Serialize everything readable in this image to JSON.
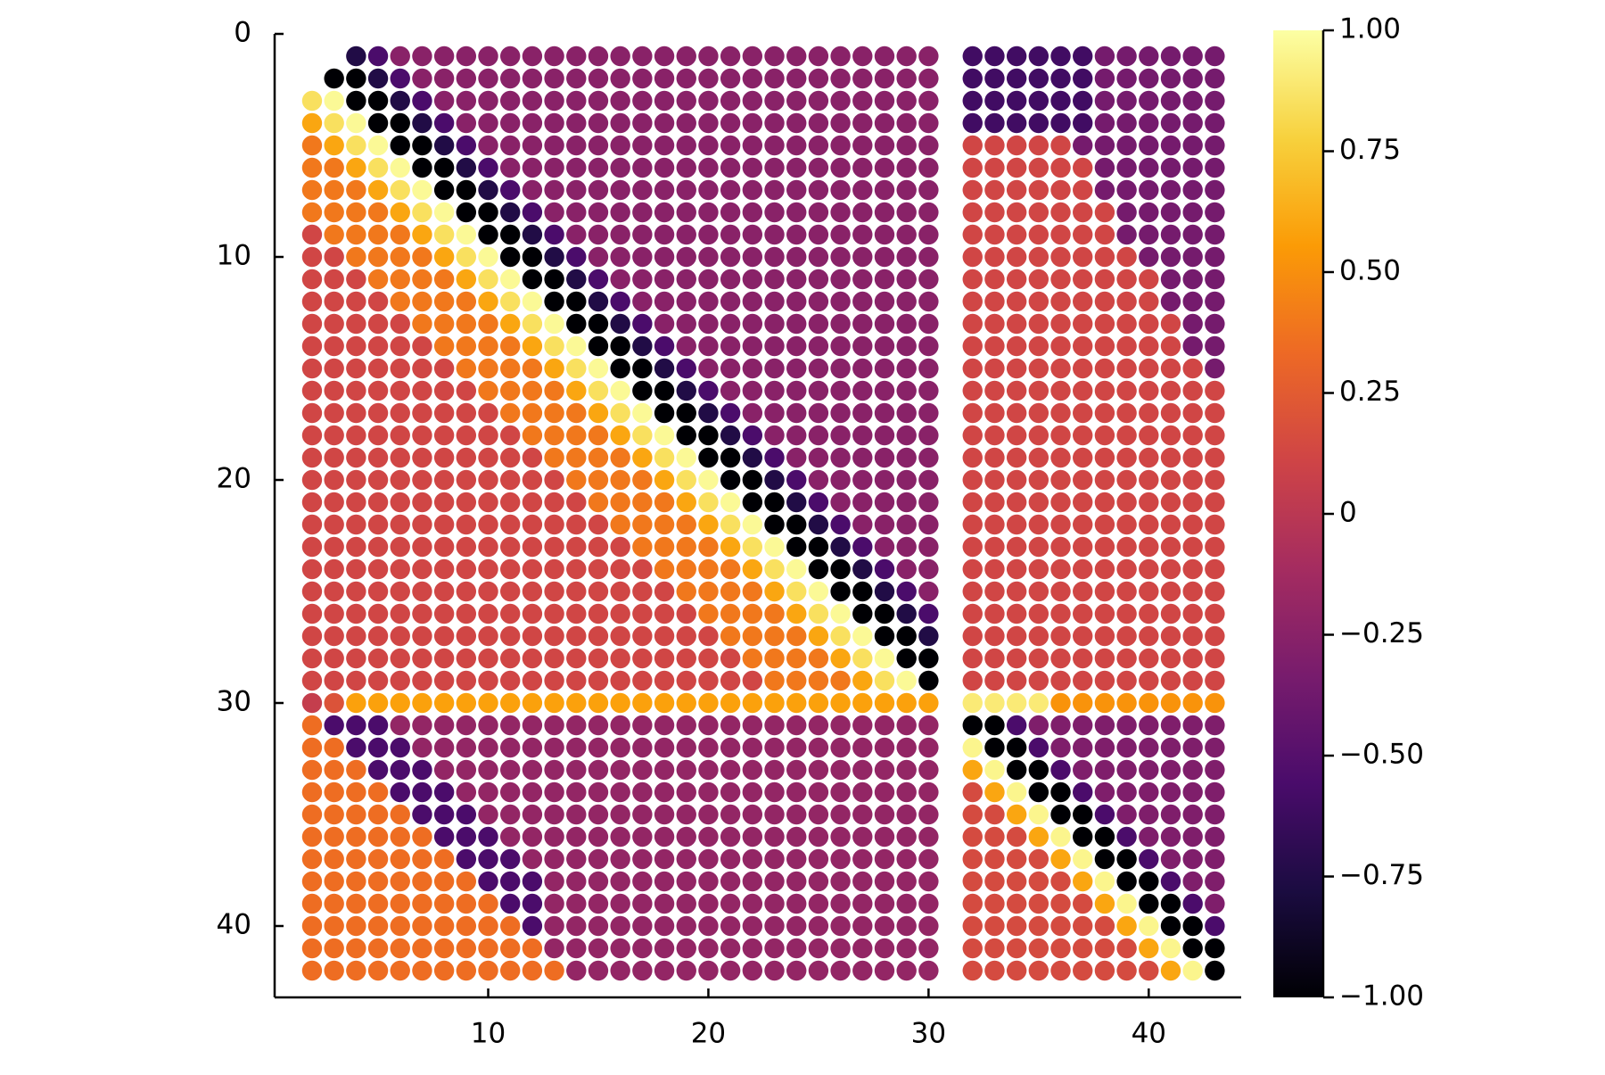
{
  "chart_data": {
    "type": "heatmap",
    "marker": "circle",
    "title": "",
    "xlabel": "",
    "ylabel": "",
    "x_range": [
      1,
      43
    ],
    "y_range": [
      1,
      42
    ],
    "xlim": [
      0.3,
      44.2
    ],
    "ylim": [
      0,
      43.2
    ],
    "y_axis_inverted": true,
    "xticks": [
      10,
      20,
      30,
      40
    ],
    "yticks": [
      0,
      10,
      20,
      30,
      40
    ],
    "missing_column": 31,
    "missing_rows_col1": [
      1,
      2
    ],
    "missing_rows_col2": [
      1,
      2
    ],
    "missing_rows_col3": [
      1
    ],
    "description_of_values": "Correlation-like matrix. Near-diagonal bands: value -1 (black) on the diagonal offset above, +1 (pale yellow) just below; values decay toward ~0 away from diagonal. Row 30 is positive (~0.5) across columns 4-30 and ~0.9 across columns 32-35; columns 32-43 form a second block.",
    "colorbar": {
      "colormap": "inferno",
      "range": [
        -1.0,
        1.0
      ],
      "tick_values": [
        1.0,
        0.75,
        0.5,
        0.25,
        0,
        -0.25,
        -0.5,
        -0.75,
        -1.0
      ],
      "tick_labels": [
        "1.00",
        "0.75",
        "0.50",
        "0.25",
        "0",
        "−0.25",
        "−0.50",
        "−0.75",
        "−1.00"
      ]
    },
    "grid": false,
    "legend": "none"
  }
}
